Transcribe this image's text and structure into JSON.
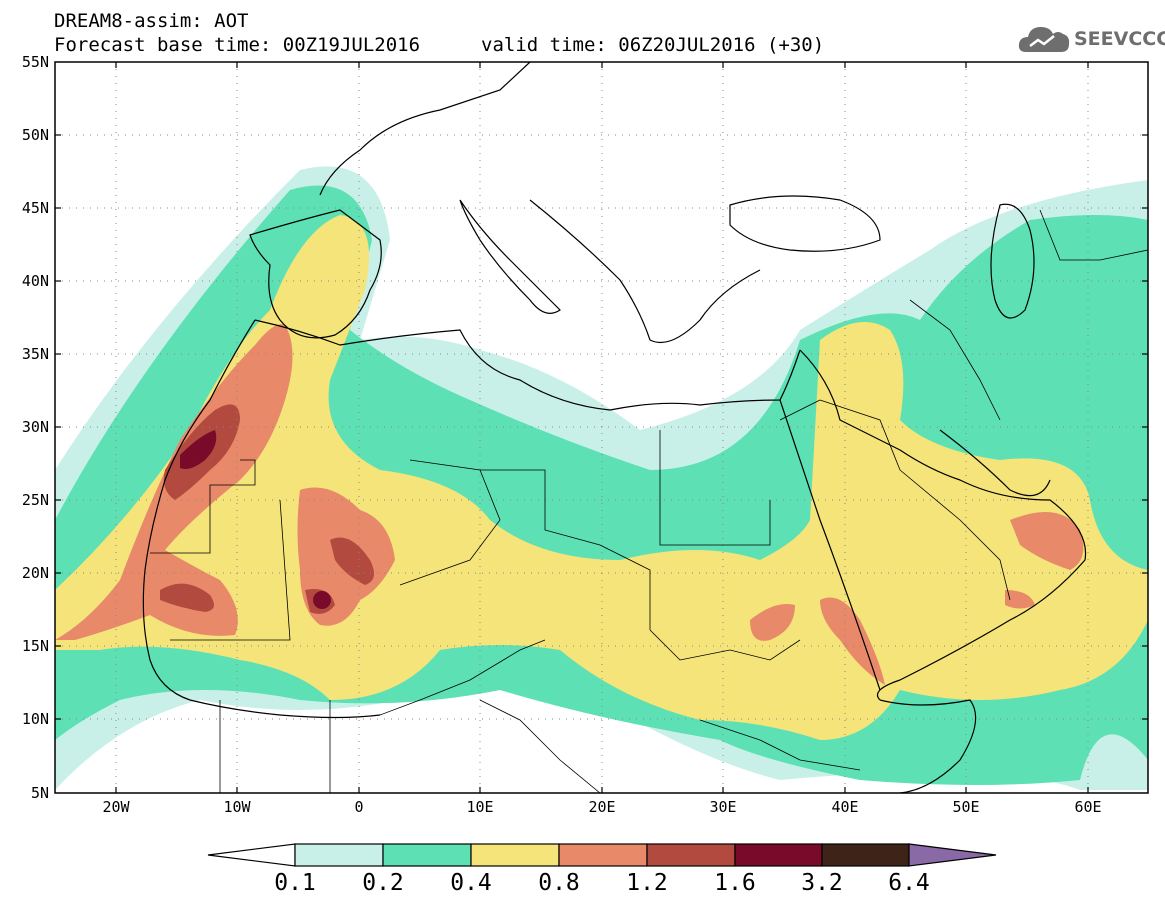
{
  "header": {
    "line1": "DREAM8-assim: AOT",
    "base_time": "Forecast base time: 00Z19JUL2016",
    "valid_time": "valid time: 06Z20JUL2016 (+30)"
  },
  "logo": {
    "text": "SEEVCCC",
    "icon": "cloud-icon"
  },
  "map": {
    "lon_ticks": [
      "20W",
      "10W",
      "0",
      "10E",
      "20E",
      "30E",
      "40E",
      "50E",
      "60E"
    ],
    "lat_ticks": [
      "55N",
      "50N",
      "45N",
      "40N",
      "35N",
      "30N",
      "25N",
      "20N",
      "15N",
      "10N",
      "5N"
    ]
  },
  "colorbar": {
    "colors": [
      "#ffffff",
      "#c8f0e8",
      "#5ce0b4",
      "#f5e47a",
      "#e8896a",
      "#b24a3f",
      "#7a0a2a",
      "#3e2418",
      "#8a6aa6"
    ],
    "labels": [
      "0.1",
      "0.2",
      "0.4",
      "0.8",
      "1.2",
      "1.6",
      "3.2",
      "6.4"
    ]
  }
}
